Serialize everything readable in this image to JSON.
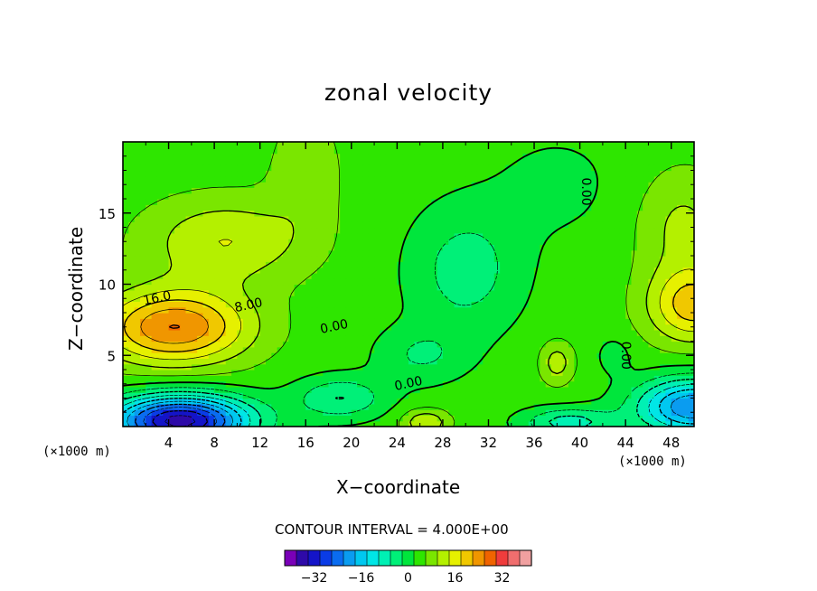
{
  "chart_data": {
    "type": "contour",
    "title": "zonal velocity",
    "xlabel": "X−coordinate",
    "ylabel": "Z−coordinate",
    "x_unit_left": "(×1000 m)",
    "x_unit_right": "(×1000 m)",
    "xlim": [
      0,
      50
    ],
    "ylim": [
      0,
      20
    ],
    "x_ticks": [
      4,
      8,
      12,
      16,
      20,
      24,
      28,
      32,
      36,
      40,
      44,
      48
    ],
    "y_ticks": [
      5,
      10,
      15
    ],
    "contour_interval_label": "CONTOUR INTERVAL = 4.000E+00",
    "contour_interval": 4,
    "contour_labels": [
      {
        "text": "16.0",
        "x": 3,
        "y": 9
      },
      {
        "text": "8.00",
        "x": 11,
        "y": 8.5
      },
      {
        "text": "0.00",
        "x": 18.5,
        "y": 7
      },
      {
        "text": "0.00",
        "x": 25,
        "y": 3
      },
      {
        "text": "0.00",
        "x": 40.5,
        "y": 16.5
      },
      {
        "text": "0.00",
        "x": 44,
        "y": 5
      }
    ],
    "colorbar": {
      "levels": [
        -40,
        -36,
        -32,
        -28,
        -24,
        -20,
        -16,
        -12,
        -8,
        -4,
        0,
        4,
        8,
        12,
        16,
        20,
        24,
        28,
        32,
        36,
        40
      ],
      "tick_labels": [
        "−32",
        "−16",
        "0",
        "16",
        "32"
      ],
      "tick_values": [
        -32,
        -16,
        0,
        16,
        32
      ],
      "colors": [
        "#7a00b8",
        "#2e0aa8",
        "#1414c8",
        "#0a3ce6",
        "#0a6cf0",
        "#0a9cf0",
        "#00c8f0",
        "#00e6e6",
        "#00f0b4",
        "#00f078",
        "#00e63c",
        "#2ee600",
        "#7ae600",
        "#b4f000",
        "#e6f000",
        "#f0c800",
        "#f09600",
        "#f06400",
        "#f03c3c",
        "#f06e6e",
        "#f0a0a0"
      ]
    },
    "field_features": [
      {
        "desc": "max",
        "x": 4.5,
        "y": 7,
        "value": 24
      },
      {
        "desc": "max",
        "x": 50,
        "y": 8.5,
        "value": 16
      },
      {
        "desc": "min",
        "x": 5,
        "y": 0.5,
        "value": -36
      },
      {
        "desc": "min",
        "x": 50,
        "y": 1.5,
        "value": -24
      },
      {
        "desc": "min",
        "x": 30,
        "y": 11,
        "value": -4
      }
    ]
  }
}
